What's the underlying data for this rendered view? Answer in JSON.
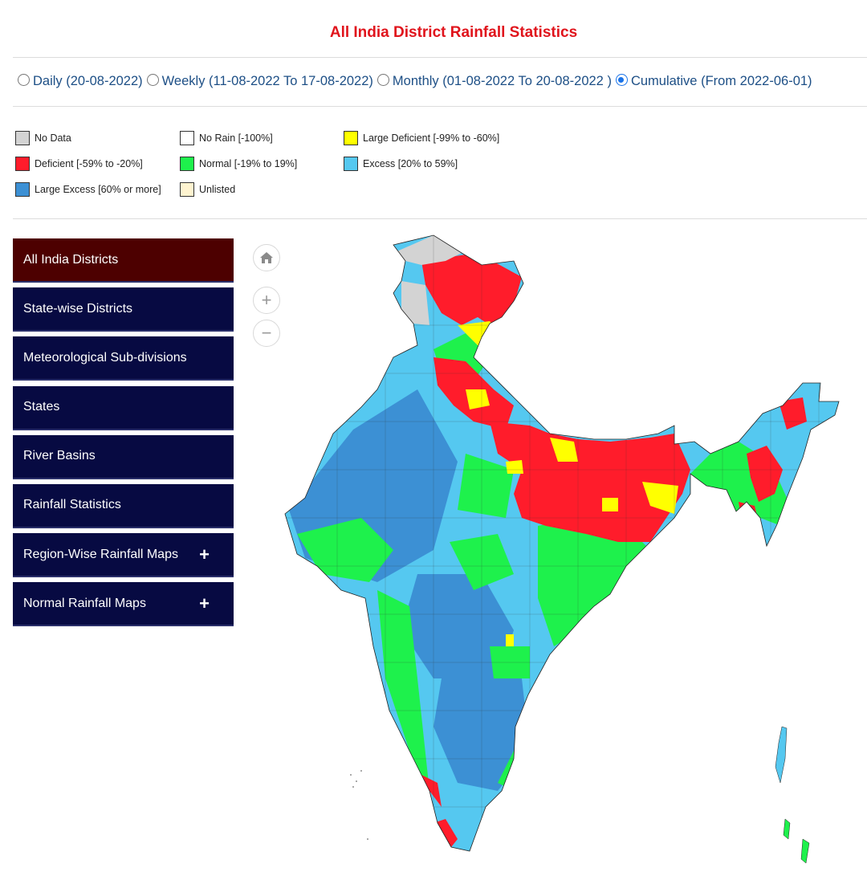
{
  "title": "All India District Rainfall Statistics",
  "periods": [
    {
      "label": "Daily (20-08-2022)",
      "selected": false
    },
    {
      "label": "Weekly (11-08-2022 To 17-08-2022)",
      "selected": false
    },
    {
      "label": "Monthly (01-08-2022 To 20-08-2022 )",
      "selected": false
    },
    {
      "label": "Cumulative (From 2022-06-01)",
      "selected": true
    }
  ],
  "legend": [
    {
      "label": "No Data",
      "color": "#d3d3d3"
    },
    {
      "label": "No Rain [-100%]",
      "color": "#ffffff"
    },
    {
      "label": "Large Deficient [-99% to -60%]",
      "color": "#ffff00"
    },
    {
      "label": "Deficient [-59% to -20%]",
      "color": "#ff1c2b"
    },
    {
      "label": "Normal [-19% to 19%]",
      "color": "#1ef14c"
    },
    {
      "label": "Excess [20% to 59%]",
      "color": "#55c8f0"
    },
    {
      "label": "Large Excess [60% or more]",
      "color": "#3c90d4"
    },
    {
      "label": "Unlisted",
      "color": "#fff4d0"
    }
  ],
  "menu": [
    {
      "label": "All India Districts",
      "active": true,
      "expandable": false
    },
    {
      "label": "State-wise Districts",
      "active": false,
      "expandable": false
    },
    {
      "label": "Meteorological Sub-divisions",
      "active": false,
      "expandable": false
    },
    {
      "label": "States",
      "active": false,
      "expandable": false
    },
    {
      "label": "River Basins",
      "active": false,
      "expandable": false
    },
    {
      "label": "Rainfall Statistics",
      "active": false,
      "expandable": false
    },
    {
      "label": "Region-Wise Rainfall Maps",
      "active": false,
      "expandable": true
    },
    {
      "label": "Normal Rainfall Maps",
      "active": false,
      "expandable": true
    }
  ],
  "map_controls": {
    "home": "home-icon",
    "zoom_in": "+",
    "zoom_out": "−"
  },
  "icons": {
    "expand": "+"
  }
}
